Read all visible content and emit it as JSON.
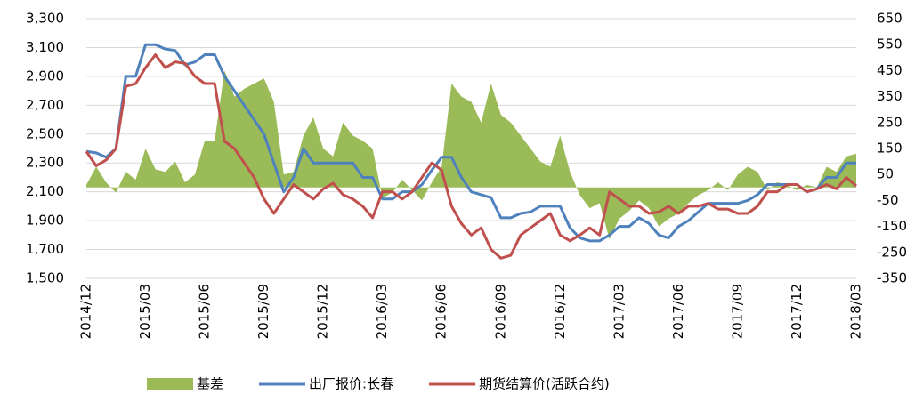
{
  "chart_data": {
    "type": "line",
    "categories": [
      "2014/12",
      null,
      null,
      null,
      null,
      null,
      "2015/03",
      null,
      null,
      null,
      null,
      null,
      "2015/06",
      null,
      null,
      null,
      null,
      null,
      "2015/09",
      null,
      null,
      null,
      null,
      null,
      "2015/12",
      null,
      null,
      null,
      null,
      null,
      "2016/03",
      null,
      null,
      null,
      null,
      null,
      "2016/06",
      null,
      null,
      null,
      null,
      null,
      "2016/09",
      null,
      null,
      null,
      null,
      null,
      "2016/12",
      null,
      null,
      null,
      null,
      null,
      "2017/03",
      null,
      null,
      null,
      null,
      null,
      "2017/06",
      null,
      null,
      null,
      null,
      null,
      "2017/09",
      null,
      null,
      null,
      null,
      null,
      "2017/12",
      null,
      null,
      null,
      null,
      null,
      "2018/03"
    ],
    "series": [
      {
        "name": "基差",
        "color": "#9bbb59",
        "type": "area",
        "axis": "y2",
        "values": [
          10,
          80,
          20,
          -20,
          60,
          30,
          150,
          70,
          60,
          100,
          20,
          50,
          180,
          180,
          450,
          350,
          380,
          400,
          420,
          330,
          50,
          60,
          200,
          270,
          150,
          120,
          250,
          200,
          180,
          150,
          -40,
          -20,
          30,
          -10,
          -50,
          20,
          80,
          400,
          350,
          330,
          250,
          400,
          280,
          250,
          200,
          150,
          100,
          80,
          200,
          60,
          -30,
          -80,
          -60,
          -200,
          -120,
          -90,
          -50,
          -80,
          -150,
          -120,
          -100,
          -60,
          -30,
          -10,
          20,
          -10,
          50,
          80,
          60,
          -10,
          20,
          10,
          -10,
          10,
          0,
          80,
          60,
          120,
          130
        ]
      },
      {
        "name": "出厂报价:长春",
        "color": "#4f81bd",
        "type": "line",
        "values": [
          2380,
          2370,
          2340,
          2400,
          2900,
          2900,
          3120,
          3120,
          3090,
          3080,
          2980,
          3000,
          3050,
          3050,
          2900,
          2800,
          2700,
          2600,
          2500,
          2300,
          2100,
          2200,
          2400,
          2300,
          2300,
          2300,
          2300,
          2300,
          2200,
          2200,
          2050,
          2050,
          2100,
          2100,
          2150,
          2250,
          2340,
          2340,
          2200,
          2100,
          2080,
          2060,
          1920,
          1920,
          1950,
          1960,
          2000,
          2000,
          2000,
          1850,
          1780,
          1760,
          1760,
          1800,
          1860,
          1860,
          1920,
          1880,
          1800,
          1780,
          1860,
          1900,
          1960,
          2020,
          2020,
          2020,
          2020,
          2040,
          2080,
          2150,
          2150,
          2150,
          2150,
          2100,
          2120,
          2200,
          2200,
          2300,
          2300
        ]
      },
      {
        "name": "期货结算价(活跃合约)",
        "color": "#c0504d",
        "type": "line",
        "values": [
          2380,
          2280,
          2320,
          2400,
          2830,
          2850,
          2960,
          3050,
          2960,
          3000,
          2990,
          2900,
          2850,
          2850,
          2450,
          2400,
          2300,
          2200,
          2050,
          1950,
          2050,
          2150,
          2100,
          2050,
          2120,
          2160,
          2080,
          2050,
          2000,
          1920,
          2100,
          2100,
          2050,
          2100,
          2200,
          2300,
          2250,
          2000,
          1880,
          1800,
          1850,
          1700,
          1640,
          1660,
          1800,
          1850,
          1900,
          1950,
          1800,
          1760,
          1800,
          1850,
          1800,
          2100,
          2050,
          2000,
          2000,
          1950,
          1960,
          2000,
          1950,
          2000,
          2000,
          2020,
          1980,
          1980,
          1950,
          1950,
          2000,
          2100,
          2100,
          2150,
          2150,
          2100,
          2120,
          2150,
          2120,
          2200,
          2140
        ]
      }
    ],
    "ylim": [
      1500,
      3300
    ],
    "yticks": [
      {
        "value": 1500,
        "label": "1,500"
      },
      {
        "value": 1700,
        "label": "1,700"
      },
      {
        "value": 1900,
        "label": "1,900"
      },
      {
        "value": 2100,
        "label": "2,100"
      },
      {
        "value": 2300,
        "label": "2,300"
      },
      {
        "value": 2500,
        "label": "2,500"
      },
      {
        "value": 2700,
        "label": "2,700"
      },
      {
        "value": 2900,
        "label": "2,900"
      },
      {
        "value": 3100,
        "label": "3,100"
      },
      {
        "value": 3300,
        "label": "3,300"
      }
    ],
    "y2lim": [
      -350,
      650
    ],
    "y2ticks": [
      -350,
      -250,
      -150,
      -50,
      50,
      150,
      250,
      350,
      450,
      550,
      650
    ],
    "grid": true,
    "legend": "bottom"
  }
}
